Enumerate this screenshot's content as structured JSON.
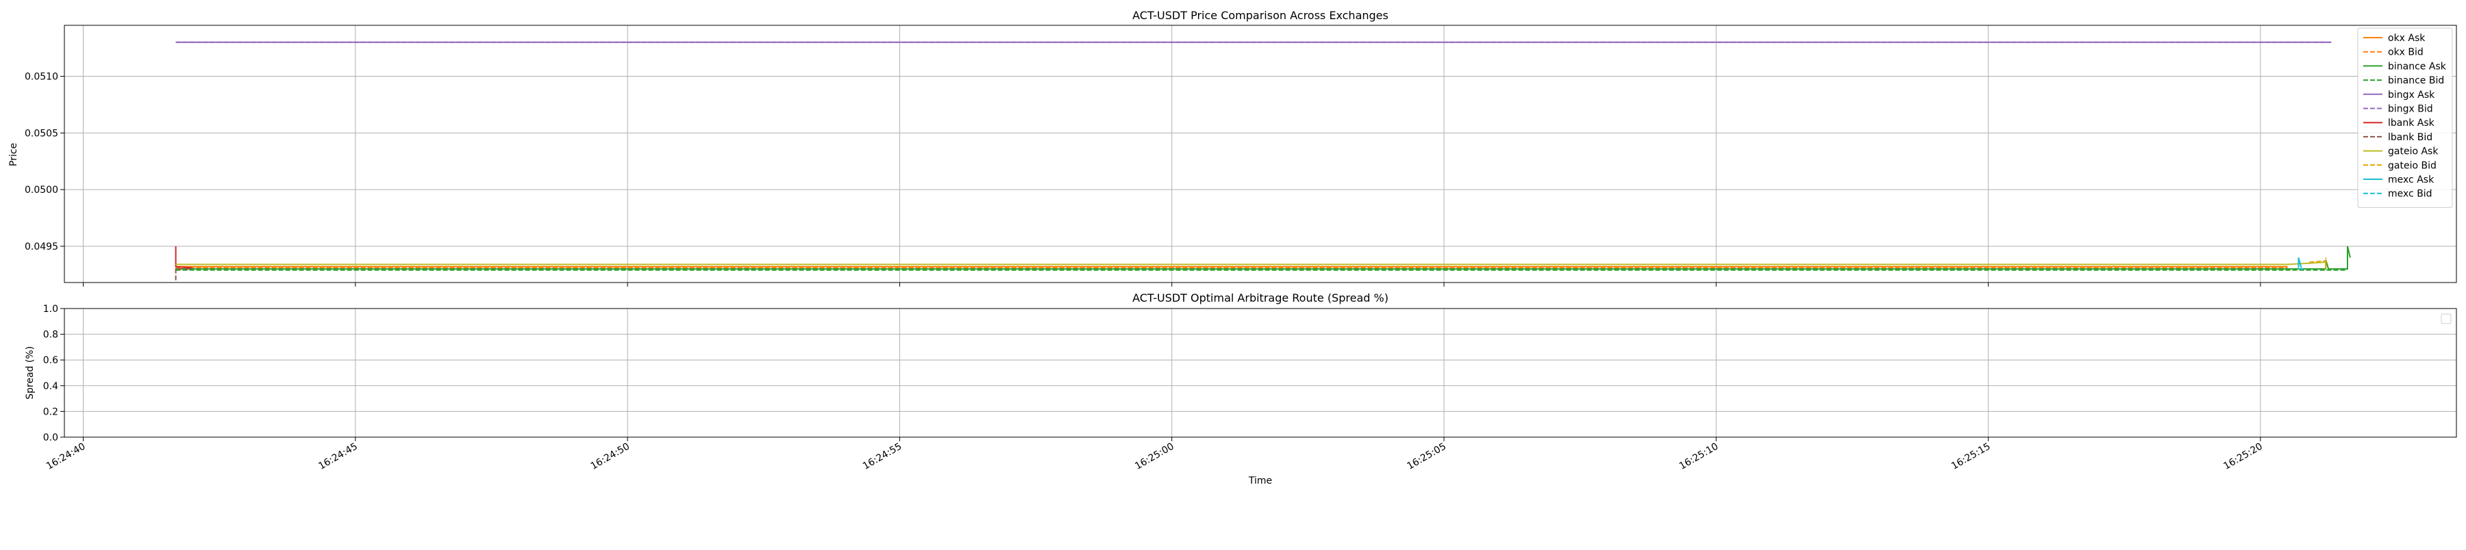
{
  "chart_data": [
    {
      "type": "line",
      "title": "ACT-USDT Price Comparison Across Exchanges",
      "xlabel": "",
      "ylabel": "Price",
      "xlim": [
        "16:24:40",
        "16:25:24"
      ],
      "ylim": [
        0.04918,
        0.05145
      ],
      "y_ticks": [
        "0.0495",
        "0.0500",
        "0.0505",
        "0.0510"
      ],
      "y_tick_values": [
        0.0495,
        0.05,
        0.0505,
        0.051
      ],
      "grid": true,
      "legend_position": "top-right",
      "series": [
        {
          "name": "okx Ask",
          "color": "#ff7f0e",
          "dash": false,
          "points": [
            [
              "16:24:41.7",
              0.04932
            ],
            [
              "16:25:20.5",
              0.04932
            ]
          ]
        },
        {
          "name": "okx Bid",
          "color": "#ff7f0e",
          "dash": true,
          "points": [
            [
              "16:24:41.7",
              0.04931
            ],
            [
              "16:25:20.5",
              0.04931
            ]
          ]
        },
        {
          "name": "binance Ask",
          "color": "#2ca02c",
          "dash": false,
          "points": [
            [
              "16:24:41.7",
              0.0493
            ],
            [
              "16:25:20.7",
              0.0493
            ],
            [
              "16:25:21.2",
              0.0493
            ],
            [
              "16:25:21.2",
              0.04938
            ],
            [
              "16:25:21.25",
              0.0493
            ],
            [
              "16:25:21.6",
              0.0493
            ],
            [
              "16:25:21.6",
              0.0495
            ],
            [
              "16:25:21.65",
              0.0494
            ]
          ]
        },
        {
          "name": "binance Bid",
          "color": "#2ca02c",
          "dash": true,
          "points": [
            [
              "16:24:41.7",
              0.04929
            ],
            [
              "16:25:20.7",
              0.04929
            ],
            [
              "16:25:21.2",
              0.04929
            ],
            [
              "16:25:21.6",
              0.04929
            ]
          ]
        },
        {
          "name": "bingx Ask",
          "color": "#9467bd",
          "dash": false,
          "points": [
            [
              "16:24:41.7",
              0.0513
            ],
            [
              "16:25:21.3",
              0.0513
            ]
          ]
        },
        {
          "name": "bingx Bid",
          "color": "#9467bd",
          "dash": true,
          "points": [
            [
              "16:24:41.7",
              0.0513
            ],
            [
              "16:25:21.3",
              0.0513
            ]
          ]
        },
        {
          "name": "lbank Ask",
          "color": "#d62728",
          "dash": false,
          "points": [
            [
              "16:24:41.7",
              0.0495
            ],
            [
              "16:24:41.7",
              0.04932
            ],
            [
              "16:24:42.0",
              0.04931
            ]
          ]
        },
        {
          "name": "lbank Bid",
          "color": "#8c564b",
          "dash": true,
          "points": [
            [
              "16:24:41.7",
              0.0492
            ],
            [
              "16:24:41.7",
              0.0493
            ],
            [
              "16:24:42.0",
              0.0493
            ]
          ]
        },
        {
          "name": "gateio Ask",
          "color": "#bcbd22",
          "dash": false,
          "points": [
            [
              "16:24:41.7",
              0.04934
            ],
            [
              "16:25:20.5",
              0.04934
            ],
            [
              "16:25:20.9",
              0.04935
            ],
            [
              "16:25:21.2",
              0.04936
            ]
          ]
        },
        {
          "name": "gateio Bid",
          "color": "#e5a500",
          "dash": true,
          "points": [
            [
              "16:25:20.9",
              0.04936
            ],
            [
              "16:25:21.2",
              0.04937
            ],
            [
              "16:25:21.2",
              0.0493
            ],
            [
              "16:25:21.2",
              0.0494
            ]
          ]
        },
        {
          "name": "mexc Ask",
          "color": "#17becf",
          "dash": false,
          "points": [
            [
              "16:25:20.7",
              0.04931
            ],
            [
              "16:25:20.7",
              0.0494
            ],
            [
              "16:25:20.75",
              0.04931
            ]
          ]
        },
        {
          "name": "mexc Bid",
          "color": "#17becf",
          "dash": true,
          "points": [
            [
              "16:25:20.7",
              0.0493
            ],
            [
              "16:25:20.8",
              0.0493
            ]
          ]
        }
      ]
    },
    {
      "type": "line",
      "title": "ACT-USDT Optimal Arbitrage Route (Spread %)",
      "xlabel": "Time",
      "ylabel": "Spread (%)",
      "xlim": [
        "16:24:40",
        "16:25:24"
      ],
      "ylim": [
        0,
        1
      ],
      "y_ticks": [
        "0.0",
        "0.2",
        "0.4",
        "0.6",
        "0.8",
        "1.0"
      ],
      "y_tick_values": [
        0,
        0.2,
        0.4,
        0.6,
        0.8,
        1.0
      ],
      "x_ticks": [
        "16:24:40",
        "16:24:45",
        "16:24:50",
        "16:24:55",
        "16:25:00",
        "16:25:05",
        "16:25:10",
        "16:25:15",
        "16:25:20"
      ],
      "grid": true,
      "legend_position": "top-right",
      "series": []
    }
  ]
}
